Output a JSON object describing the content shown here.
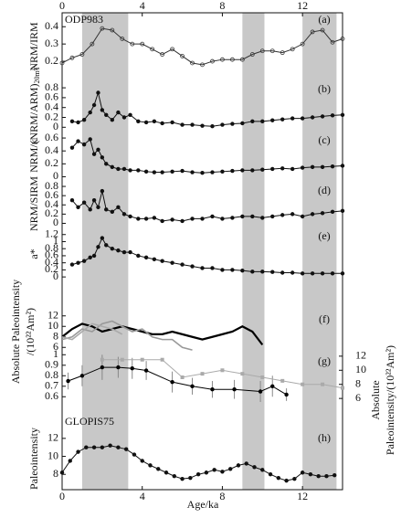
{
  "xlim": [
    0,
    14
  ],
  "xticks": [
    0,
    4,
    8,
    12
  ],
  "xlabel": "Age/ka",
  "bands": [
    [
      1,
      3.3
    ],
    [
      9,
      10.1
    ],
    [
      12,
      13.7
    ]
  ],
  "chart_data": [
    {
      "type": "line",
      "letter": "(a)",
      "annotation": "ODP983",
      "ylabel": "NRM/IRM",
      "ylim": [
        0.1,
        0.47
      ],
      "yticks": [
        0.2,
        0.3,
        0.4
      ],
      "series": [
        {
          "color": "#333333",
          "marker": "open",
          "x": [
            0,
            0.5,
            1,
            1.5,
            2,
            2.5,
            3,
            3.5,
            4,
            4.5,
            5,
            5.5,
            6,
            6.5,
            7,
            7.5,
            8,
            8.5,
            9,
            9.5,
            10,
            10.5,
            11,
            11.5,
            12,
            12.5,
            13,
            13.5,
            14
          ],
          "values": [
            0.19,
            0.22,
            0.24,
            0.3,
            0.39,
            0.38,
            0.33,
            0.3,
            0.3,
            0.27,
            0.24,
            0.27,
            0.23,
            0.19,
            0.18,
            0.2,
            0.21,
            0.21,
            0.21,
            0.24,
            0.26,
            0.26,
            0.25,
            0.27,
            0.3,
            0.37,
            0.38,
            0.31,
            0.33
          ]
        }
      ]
    },
    {
      "type": "line",
      "letter": "(b)",
      "ylabel": "(NRM/ARM)",
      "ylabel_sub": "20mT",
      "ylim": [
        -0.05,
        0.95
      ],
      "yticks": [
        0,
        0.2,
        0.4,
        0.6,
        0.8
      ],
      "series": [
        {
          "color": "#111111",
          "marker": "dot",
          "x": [
            0.5,
            0.8,
            1.1,
            1.4,
            1.6,
            1.8,
            2,
            2.2,
            2.5,
            2.8,
            3.1,
            3.4,
            3.8,
            4.2,
            4.6,
            5,
            5.5,
            6,
            6.5,
            7,
            7.5,
            8,
            8.5,
            9,
            9.5,
            10,
            10.5,
            11,
            11.5,
            12,
            12.5,
            13,
            13.5,
            14
          ],
          "values": [
            0.12,
            0.1,
            0.15,
            0.3,
            0.45,
            0.7,
            0.35,
            0.25,
            0.15,
            0.3,
            0.2,
            0.25,
            0.12,
            0.1,
            0.12,
            0.08,
            0.1,
            0.05,
            0.05,
            0.03,
            0.02,
            0.05,
            0.07,
            0.08,
            0.12,
            0.12,
            0.14,
            0.16,
            0.18,
            0.18,
            0.2,
            0.22,
            0.24,
            0.25
          ]
        }
      ]
    },
    {
      "type": "line",
      "letter": "(c)",
      "ylabel": "NRM/κ",
      "ylim": [
        -0.05,
        0.7
      ],
      "yticks": [
        0,
        0.2,
        0.4,
        0.6
      ],
      "series": [
        {
          "color": "#111111",
          "marker": "dot",
          "x": [
            0.5,
            0.8,
            1.1,
            1.4,
            1.6,
            1.8,
            2,
            2.2,
            2.5,
            2.8,
            3.1,
            3.4,
            3.8,
            4.2,
            4.6,
            5,
            5.5,
            6,
            6.5,
            7,
            7.5,
            8,
            8.5,
            9,
            9.5,
            10,
            10.5,
            11,
            11.5,
            12,
            12.5,
            13,
            13.5,
            14
          ],
          "values": [
            0.45,
            0.55,
            0.5,
            0.58,
            0.35,
            0.42,
            0.3,
            0.2,
            0.15,
            0.12,
            0.12,
            0.1,
            0.1,
            0.08,
            0.07,
            0.07,
            0.08,
            0.09,
            0.07,
            0.06,
            0.07,
            0.08,
            0.09,
            0.1,
            0.1,
            0.11,
            0.12,
            0.13,
            0.12,
            0.14,
            0.15,
            0.15,
            0.16,
            0.17
          ]
        }
      ]
    },
    {
      "type": "line",
      "letter": "(d)",
      "ylabel": "NRM/SIRM",
      "ylim": [
        -0.05,
        0.9
      ],
      "yticks": [
        0,
        0.2,
        0.4,
        0.6,
        0.8
      ],
      "series": [
        {
          "color": "#111111",
          "marker": "dot",
          "x": [
            0.5,
            0.8,
            1.1,
            1.4,
            1.6,
            1.8,
            2,
            2.2,
            2.5,
            2.8,
            3.1,
            3.4,
            3.8,
            4.2,
            4.6,
            5,
            5.5,
            6,
            6.5,
            7,
            7.5,
            8,
            8.5,
            9,
            9.5,
            10,
            10.5,
            11,
            11.5,
            12,
            12.5,
            13,
            13.5,
            14
          ],
          "values": [
            0.5,
            0.35,
            0.45,
            0.3,
            0.5,
            0.35,
            0.7,
            0.3,
            0.25,
            0.35,
            0.2,
            0.15,
            0.1,
            0.1,
            0.12,
            0.05,
            0.08,
            0.05,
            0.1,
            0.1,
            0.15,
            0.1,
            0.12,
            0.15,
            0.15,
            0.12,
            0.15,
            0.18,
            0.2,
            0.15,
            0.2,
            0.22,
            0.25,
            0.27
          ]
        }
      ]
    },
    {
      "type": "line",
      "letter": "(e)",
      "ylabel": "a*",
      "ylim": [
        -0.1,
        1.4
      ],
      "yticks": [
        0,
        0.2,
        0.4,
        0.6,
        0.8,
        1,
        1.2
      ],
      "series": [
        {
          "color": "#111111",
          "marker": "dot",
          "x": [
            0.5,
            0.8,
            1.1,
            1.4,
            1.6,
            1.8,
            2,
            2.2,
            2.5,
            2.8,
            3.1,
            3.4,
            3.8,
            4.2,
            4.6,
            5,
            5.5,
            6,
            6.5,
            7,
            7.5,
            8,
            8.5,
            9,
            9.5,
            10,
            10.5,
            11,
            11.5,
            12,
            12.5,
            13,
            13.5,
            14
          ],
          "values": [
            0.35,
            0.4,
            0.45,
            0.55,
            0.6,
            0.85,
            1.1,
            0.9,
            0.8,
            0.75,
            0.7,
            0.7,
            0.6,
            0.55,
            0.5,
            0.45,
            0.4,
            0.35,
            0.3,
            0.25,
            0.25,
            0.2,
            0.2,
            0.18,
            0.15,
            0.15,
            0.14,
            0.12,
            0.12,
            0.1,
            0.1,
            0.1,
            0.1,
            0.1
          ]
        }
      ]
    },
    {
      "type": "line",
      "letter": "(f)",
      "ylabel": "Absolute Paleointensity",
      "ylabel2": "/(10²²Am²)",
      "ylim": [
        5,
        13
      ],
      "yticks": [
        6,
        8,
        10,
        12
      ],
      "series": [
        {
          "color": "#000000",
          "width": 2.2,
          "x": [
            0,
            0.5,
            1,
            1.5,
            2,
            2.5,
            3,
            3.5,
            4,
            4.5,
            5,
            5.5,
            6,
            6.5,
            7,
            7.5,
            8,
            8.5,
            9,
            9.5,
            10
          ],
          "values": [
            8,
            9.5,
            10.5,
            10,
            9,
            9.5,
            10,
            9.5,
            9,
            8.5,
            8.5,
            9,
            8.5,
            8,
            7.5,
            8,
            8.5,
            9,
            10,
            9,
            6.5
          ]
        },
        {
          "color": "#999999",
          "width": 1.6,
          "x": [
            0,
            0.5,
            1,
            1.5,
            2,
            2.5,
            3,
            3.5,
            4,
            4.5,
            5,
            5.5,
            6,
            6.5
          ],
          "values": [
            7.5,
            8,
            9.5,
            9,
            10.5,
            11,
            10,
            9,
            9.5,
            8,
            7.5,
            7.5,
            6,
            5.5
          ]
        },
        {
          "color": "#aaaaaa",
          "width": 1.6,
          "x": [
            0,
            0.5,
            1,
            1.5,
            2,
            2.5,
            3
          ],
          "values": [
            8,
            7.5,
            9,
            10.5,
            10,
            9.5,
            8.5
          ]
        }
      ]
    },
    {
      "type": "line",
      "letter": "(g)",
      "ylim": [
        0.55,
        1.02
      ],
      "yticks": [
        0.6,
        0.7,
        0.8,
        0.9,
        1
      ],
      "y2lim": [
        5.5,
        12.5
      ],
      "y2ticks": [
        6,
        8,
        10,
        12
      ],
      "y2label": "Absolute",
      "y2label2": "Paleointensity/(10²²Am²)",
      "series": [
        {
          "color": "#000000",
          "marker": "dot",
          "x": [
            0.3,
            1,
            2,
            2.8,
            3.5,
            4.2,
            5.5,
            6.5,
            7.5,
            8.6,
            9.9,
            10.5,
            11.2
          ],
          "values": [
            0.75,
            0.8,
            0.88,
            0.88,
            0.87,
            0.85,
            0.74,
            0.7,
            0.67,
            0.67,
            0.65,
            0.7,
            0.62
          ],
          "errors": [
            0.08,
            0.1,
            0.12,
            0.1,
            0.1,
            0.09,
            0.1,
            0.08,
            0.08,
            0.09,
            0.1,
            0.1,
            0.06
          ]
        },
        {
          "color": "#aaaaaa",
          "marker": "square",
          "axis": "y2",
          "x": [
            2,
            3,
            4,
            5,
            6,
            7,
            8,
            9,
            10,
            11,
            12,
            13,
            14
          ],
          "values": [
            11.5,
            11.5,
            11.5,
            11.5,
            9,
            9.5,
            10,
            9.5,
            9,
            8.5,
            8,
            8,
            7.5
          ]
        }
      ]
    },
    {
      "type": "line",
      "letter": "(h)",
      "annotation": "GLOPIS75",
      "ylabel": "Paleointensity",
      "ylim": [
        6.5,
        13
      ],
      "yticks": [
        8,
        10,
        12
      ],
      "series": [
        {
          "color": "#111111",
          "marker": "dot",
          "x": [
            0,
            0.4,
            0.8,
            1.2,
            1.6,
            2,
            2.4,
            2.8,
            3.2,
            3.6,
            4,
            4.4,
            4.8,
            5.2,
            5.6,
            6,
            6.4,
            6.8,
            7.2,
            7.6,
            8,
            8.4,
            8.8,
            9.2,
            9.6,
            10,
            10.4,
            10.8,
            11.2,
            11.6,
            12,
            12.4,
            12.8,
            13.2,
            13.6
          ],
          "values": [
            8.2,
            9.5,
            10.5,
            11,
            11,
            11,
            11.2,
            11,
            10.8,
            10.2,
            9.5,
            9,
            8.6,
            8.2,
            7.8,
            7.5,
            7.6,
            8,
            8.2,
            8.5,
            8.3,
            8.6,
            9,
            9.2,
            8.8,
            8.5,
            8,
            7.6,
            7.3,
            7.5,
            8.2,
            8,
            7.8,
            7.8,
            7.9
          ]
        }
      ]
    }
  ]
}
